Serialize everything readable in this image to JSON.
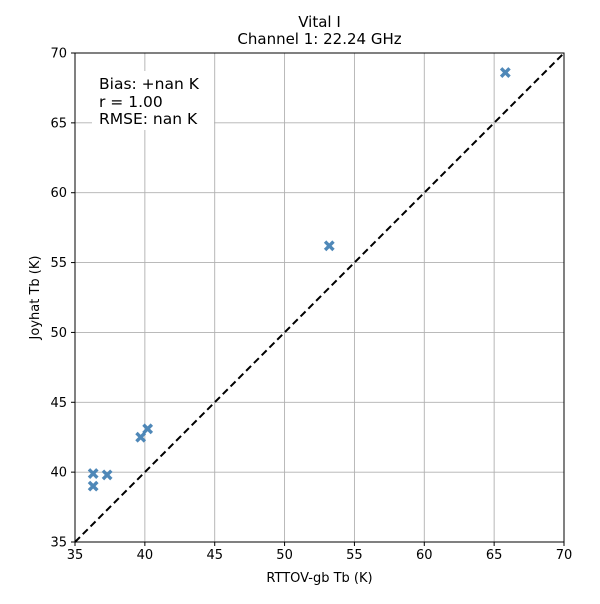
{
  "chart_data": {
    "type": "scatter",
    "title": "Vital I",
    "subtitle": "Channel 1: 22.24 GHz",
    "xlabel": "RTTOV-gb Tb (K)",
    "ylabel": "Joyhat Tb (K)",
    "xlim": [
      35,
      70
    ],
    "ylim": [
      35,
      70
    ],
    "xticks": [
      35,
      40,
      45,
      50,
      55,
      60,
      65,
      70
    ],
    "yticks": [
      35,
      40,
      45,
      50,
      55,
      60,
      65,
      70
    ],
    "grid": true,
    "reference_line": {
      "style": "dashed",
      "color": "#000000",
      "from": [
        35,
        35
      ],
      "to": [
        70,
        70
      ]
    },
    "marker": {
      "shape": "X",
      "color": "#4682b4"
    },
    "points": [
      {
        "x": 36.3,
        "y": 39.9
      },
      {
        "x": 36.3,
        "y": 39.0
      },
      {
        "x": 37.3,
        "y": 39.8
      },
      {
        "x": 39.7,
        "y": 42.5
      },
      {
        "x": 40.2,
        "y": 43.1
      },
      {
        "x": 53.2,
        "y": 56.2
      },
      {
        "x": 65.8,
        "y": 68.6
      }
    ],
    "annotations": [
      "Bias: +nan K",
      "r = 1.00",
      "RMSE: nan K"
    ]
  }
}
